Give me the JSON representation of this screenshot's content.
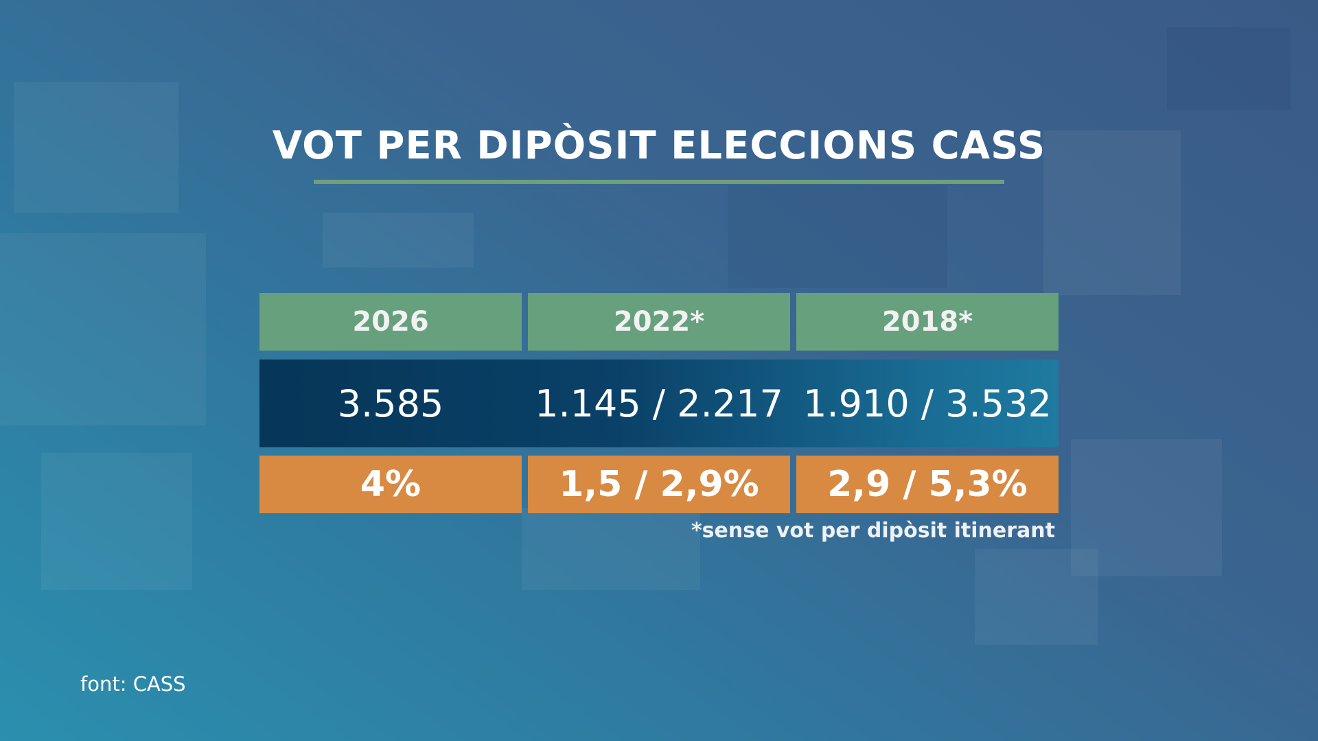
{
  "title": "VOT PER DIPÒSIT ELECCIONS CASS",
  "table": {
    "headers": [
      "2026",
      "2022*",
      "2018*"
    ],
    "values": [
      "3.585",
      "1.145 / 2.217",
      "1.910 / 3.532"
    ],
    "percentages": [
      "4%",
      "1,5 / 2,9%",
      "2,9 / 5,3%"
    ]
  },
  "footnote": "*sense vot per dipòsit itinerant",
  "source": "font: CASS",
  "colors": {
    "header_green": "#67a07c",
    "values_navy": "#063658",
    "percent_orange": "#d88a42",
    "title_rule_green": "#6fa07a"
  }
}
